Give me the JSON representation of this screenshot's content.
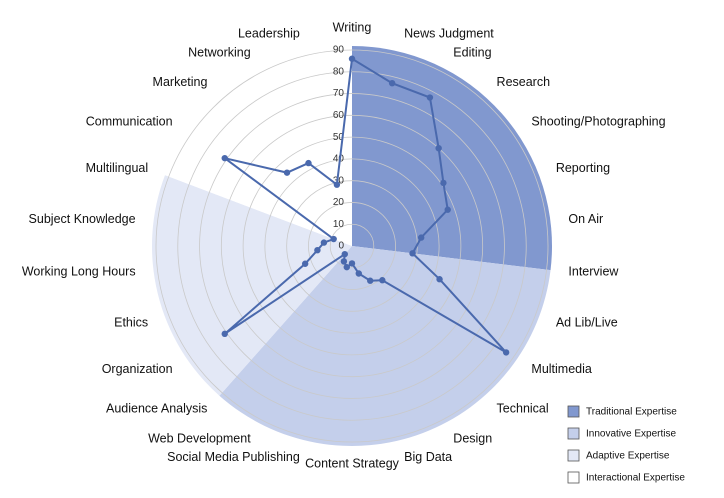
{
  "chart_data": {
    "type": "radar",
    "categories": [
      "Writing",
      "News Judgment",
      "Editing",
      "Research",
      "Shooting/Photographing",
      "Reporting",
      "On Air",
      "Interview",
      "Ad Lib/Live",
      "Multimedia",
      "Technical",
      "Design",
      "Big Data",
      "Content Strategy",
      "Social Media Publishing",
      "Web Development",
      "Audience Analysis",
      "Organization",
      "Ethics",
      "Working Long Hours",
      "Subject Knowledge",
      "Multilingual",
      "Communication",
      "Marketing",
      "Networking",
      "Leadership"
    ],
    "values": [
      86,
      77,
      77,
      60,
      51,
      47,
      32,
      28,
      43,
      86,
      21,
      18,
      13,
      8,
      10,
      8,
      5,
      71,
      23,
      16,
      13,
      9,
      71,
      45,
      43,
      29
    ],
    "color": "#4a69ad",
    "rlim": [
      0,
      90
    ],
    "rticks": [
      0,
      10,
      20,
      30,
      40,
      50,
      60,
      70,
      80,
      90
    ],
    "grid": true,
    "sectors": [
      {
        "name": "Traditional Expertise",
        "color": "#8198cf",
        "count": 8
      },
      {
        "name": "Innovative Expertise",
        "color": "#c4cfeb",
        "count": 9
      },
      {
        "name": "Adaptive Expertise",
        "color": "#e3e8f6",
        "count": 5
      },
      {
        "name": "Interactional Expertise",
        "color": "#ffffff",
        "count": 4
      }
    ],
    "legend": "bottom-right"
  }
}
